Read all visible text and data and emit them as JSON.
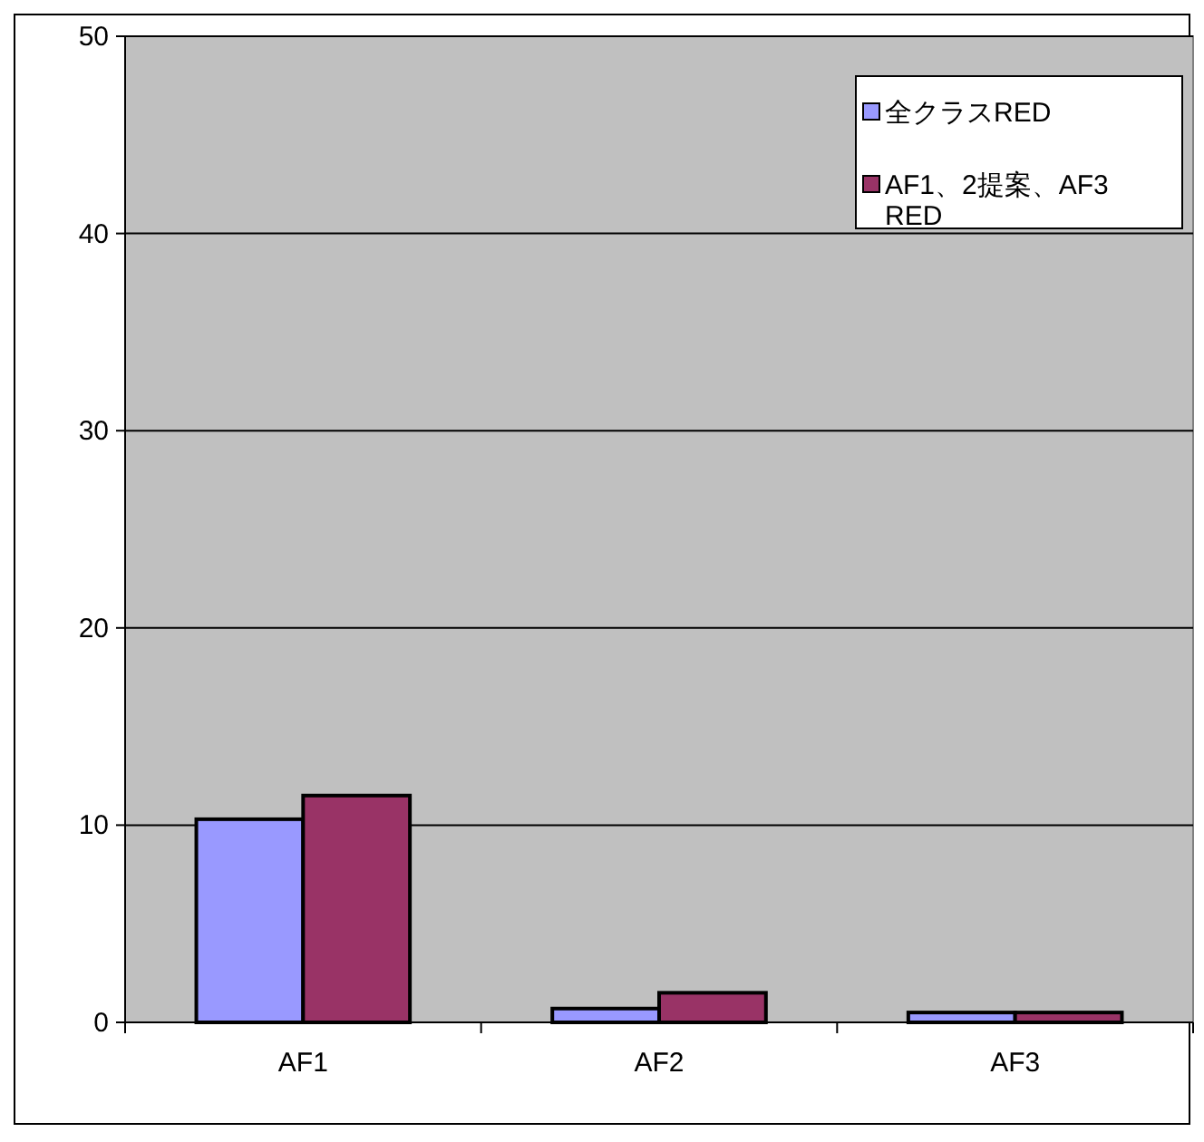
{
  "chart_data": {
    "type": "bar",
    "categories": [
      "AF1",
      "AF2",
      "AF3"
    ],
    "series": [
      {
        "name": "全クラスRED",
        "color": "#9999ff",
        "values": [
          10.3,
          0.7,
          0.5
        ]
      },
      {
        "name": "AF1、2提案、AF3 RED",
        "color": "#993366",
        "values": [
          11.5,
          1.5,
          0.5
        ]
      }
    ],
    "ylim": [
      0,
      50
    ],
    "yticks": [
      0,
      10,
      20,
      30,
      40,
      50
    ],
    "grid": "y",
    "legend": "top right"
  }
}
